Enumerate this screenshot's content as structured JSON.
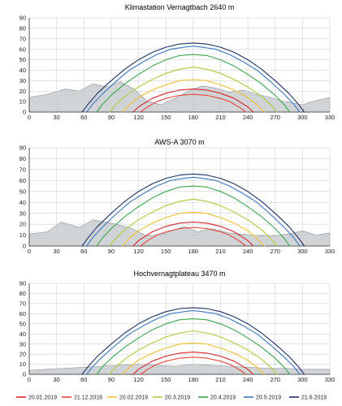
{
  "figure": {
    "legend": [
      {
        "date": "20.01.2019",
        "color": "#d7262b"
      },
      {
        "date": "21.12.2018",
        "color": "#e8453c"
      },
      {
        "date": "20.02.2019",
        "color": "#f2c12e"
      },
      {
        "date": "20.3.2019",
        "color": "#a7cf3b"
      },
      {
        "date": "20.4.2019",
        "color": "#38a84a"
      },
      {
        "date": "20.5.2019",
        "color": "#3a78c2"
      },
      {
        "date": "21.6.2019",
        "color": "#1e3269"
      }
    ]
  },
  "chart_data": [
    {
      "type": "line",
      "title": "Klimastation Vernagtbach 2640 m",
      "xlim": [
        0,
        330
      ],
      "ylim": [
        0,
        90
      ],
      "x_ticks": [
        0,
        30,
        60,
        90,
        120,
        150,
        180,
        210,
        240,
        270,
        300,
        330
      ],
      "y_ticks": [
        0,
        10,
        20,
        30,
        40,
        50,
        60,
        70,
        80,
        90
      ],
      "grid": true,
      "series": [
        {
          "name": "20.01.2019",
          "color": "#d7262b",
          "peak": 22,
          "x": [
            114,
            120,
            135,
            150,
            165,
            180,
            195,
            210,
            225,
            240,
            246
          ],
          "y": [
            0,
            5,
            13,
            18,
            21,
            22,
            21,
            18,
            13,
            5,
            0
          ]
        },
        {
          "name": "21.12.2018",
          "color": "#e8453c",
          "peak": 17,
          "x": [
            122,
            130,
            140,
            150,
            165,
            180,
            195,
            210,
            220,
            230,
            238
          ],
          "y": [
            0,
            5,
            10,
            13,
            16,
            17,
            16,
            13,
            10,
            5,
            0
          ]
        },
        {
          "name": "20.02.2019",
          "color": "#f2c12e",
          "peak": 31,
          "x": [
            102,
            110,
            120,
            135,
            150,
            165,
            180,
            195,
            210,
            225,
            240,
            250,
            258
          ],
          "y": [
            0,
            7,
            14,
            21,
            26,
            30,
            31,
            30,
            26,
            21,
            14,
            7,
            0
          ]
        },
        {
          "name": "20.3.2019",
          "color": "#a7cf3b",
          "peak": 43,
          "x": [
            88,
            95,
            105,
            120,
            135,
            150,
            165,
            180,
            195,
            210,
            225,
            240,
            255,
            265,
            272
          ],
          "y": [
            0,
            7,
            15,
            24,
            31,
            37,
            41,
            43,
            41,
            37,
            31,
            24,
            15,
            7,
            0
          ]
        },
        {
          "name": "20.4.2019",
          "color": "#38a84a",
          "peak": 55,
          "x": [
            74,
            80,
            90,
            105,
            120,
            135,
            150,
            165,
            180,
            195,
            210,
            225,
            240,
            255,
            270,
            280,
            286
          ],
          "y": [
            0,
            7,
            16,
            27,
            36,
            44,
            50,
            54,
            55,
            54,
            50,
            44,
            36,
            27,
            16,
            7,
            0
          ]
        },
        {
          "name": "20.5.2019",
          "color": "#3a78c2",
          "peak": 63,
          "x": [
            63,
            70,
            80,
            95,
            110,
            125,
            140,
            155,
            170,
            180,
            190,
            205,
            220,
            235,
            250,
            265,
            280,
            290,
            297
          ],
          "y": [
            0,
            8,
            17,
            29,
            40,
            48,
            55,
            60,
            62,
            63,
            62,
            60,
            55,
            48,
            40,
            29,
            17,
            8,
            0
          ]
        },
        {
          "name": "21.6.2019",
          "color": "#1e3269",
          "peak": 66,
          "x": [
            58,
            65,
            75,
            90,
            105,
            120,
            135,
            150,
            165,
            180,
            195,
            210,
            225,
            240,
            255,
            270,
            285,
            295,
            302
          ],
          "y": [
            0,
            8,
            18,
            30,
            41,
            50,
            57,
            62,
            65,
            66,
            65,
            62,
            57,
            50,
            41,
            30,
            18,
            8,
            0
          ]
        }
      ]
    },
    {
      "type": "line",
      "title": "AWS-A 3070 m",
      "xlim": [
        0,
        330
      ],
      "ylim": [
        0,
        90
      ],
      "x_ticks": [
        0,
        30,
        60,
        90,
        120,
        150,
        180,
        210,
        240,
        270,
        300,
        330
      ],
      "y_ticks": [
        0,
        10,
        20,
        30,
        40,
        50,
        60,
        70,
        80,
        90
      ],
      "grid": true,
      "series": [
        {
          "name": "20.01.2019",
          "color": "#d7262b",
          "peak": 22,
          "x": [
            114,
            120,
            135,
            150,
            165,
            180,
            195,
            210,
            225,
            240,
            246
          ],
          "y": [
            0,
            5,
            13,
            18,
            21,
            22,
            21,
            18,
            13,
            5,
            0
          ]
        },
        {
          "name": "21.12.2018",
          "color": "#e8453c",
          "peak": 17,
          "x": [
            122,
            130,
            140,
            150,
            165,
            180,
            195,
            210,
            220,
            230,
            238
          ],
          "y": [
            0,
            5,
            10,
            13,
            16,
            17,
            16,
            13,
            10,
            5,
            0
          ]
        },
        {
          "name": "20.02.2019",
          "color": "#f2c12e",
          "peak": 31,
          "x": [
            102,
            110,
            120,
            135,
            150,
            165,
            180,
            195,
            210,
            225,
            240,
            250,
            258
          ],
          "y": [
            0,
            7,
            14,
            21,
            26,
            30,
            31,
            30,
            26,
            21,
            14,
            7,
            0
          ]
        },
        {
          "name": "20.3.2019",
          "color": "#a7cf3b",
          "peak": 43,
          "x": [
            88,
            95,
            105,
            120,
            135,
            150,
            165,
            180,
            195,
            210,
            225,
            240,
            255,
            265,
            272
          ],
          "y": [
            0,
            7,
            15,
            24,
            31,
            37,
            41,
            43,
            41,
            37,
            31,
            24,
            15,
            7,
            0
          ]
        },
        {
          "name": "20.4.2019",
          "color": "#38a84a",
          "peak": 55,
          "x": [
            74,
            80,
            90,
            105,
            120,
            135,
            150,
            165,
            180,
            195,
            210,
            225,
            240,
            255,
            270,
            280,
            286
          ],
          "y": [
            0,
            7,
            16,
            27,
            36,
            44,
            50,
            54,
            55,
            54,
            50,
            44,
            36,
            27,
            16,
            7,
            0
          ]
        },
        {
          "name": "20.5.2019",
          "color": "#3a78c2",
          "peak": 63,
          "x": [
            63,
            70,
            80,
            95,
            110,
            125,
            140,
            155,
            170,
            180,
            190,
            205,
            220,
            235,
            250,
            265,
            280,
            290,
            297
          ],
          "y": [
            0,
            8,
            17,
            29,
            40,
            48,
            55,
            60,
            62,
            63,
            62,
            60,
            55,
            48,
            40,
            29,
            17,
            8,
            0
          ]
        },
        {
          "name": "21.6.2019",
          "color": "#1e3269",
          "peak": 66,
          "x": [
            58,
            65,
            75,
            90,
            105,
            120,
            135,
            150,
            165,
            180,
            195,
            210,
            225,
            240,
            255,
            270,
            285,
            295,
            302
          ],
          "y": [
            0,
            8,
            18,
            30,
            41,
            50,
            57,
            62,
            65,
            66,
            65,
            62,
            57,
            50,
            41,
            30,
            18,
            8,
            0
          ]
        }
      ]
    },
    {
      "type": "line",
      "title": "Hochvernagtplateau 3470 m",
      "xlim": [
        0,
        330
      ],
      "ylim": [
        0,
        90
      ],
      "x_ticks": [
        0,
        30,
        60,
        90,
        120,
        150,
        180,
        210,
        240,
        270,
        300,
        330
      ],
      "y_ticks": [
        0,
        10,
        20,
        30,
        40,
        50,
        60,
        70,
        80,
        90
      ],
      "grid": true,
      "series": [
        {
          "name": "20.01.2019",
          "color": "#d7262b",
          "peak": 22,
          "x": [
            114,
            120,
            135,
            150,
            165,
            180,
            195,
            210,
            225,
            240,
            246
          ],
          "y": [
            0,
            5,
            13,
            18,
            21,
            22,
            21,
            18,
            13,
            5,
            0
          ]
        },
        {
          "name": "21.12.2018",
          "color": "#e8453c",
          "peak": 17,
          "x": [
            122,
            130,
            140,
            150,
            165,
            180,
            195,
            210,
            220,
            230,
            238
          ],
          "y": [
            0,
            5,
            10,
            13,
            16,
            17,
            16,
            13,
            10,
            5,
            0
          ]
        },
        {
          "name": "20.02.2019",
          "color": "#f2c12e",
          "peak": 31,
          "x": [
            102,
            110,
            120,
            135,
            150,
            165,
            180,
            195,
            210,
            225,
            240,
            250,
            258
          ],
          "y": [
            0,
            7,
            14,
            21,
            26,
            30,
            31,
            30,
            26,
            21,
            14,
            7,
            0
          ]
        },
        {
          "name": "20.3.2019",
          "color": "#a7cf3b",
          "peak": 43,
          "x": [
            88,
            95,
            105,
            120,
            135,
            150,
            165,
            180,
            195,
            210,
            225,
            240,
            255,
            265,
            272
          ],
          "y": [
            0,
            7,
            15,
            24,
            31,
            37,
            41,
            43,
            41,
            37,
            31,
            24,
            15,
            7,
            0
          ]
        },
        {
          "name": "20.4.2019",
          "color": "#38a84a",
          "peak": 55,
          "x": [
            74,
            80,
            90,
            105,
            120,
            135,
            150,
            165,
            180,
            195,
            210,
            225,
            240,
            255,
            270,
            280,
            286
          ],
          "y": [
            0,
            7,
            16,
            27,
            36,
            44,
            50,
            54,
            55,
            54,
            50,
            44,
            36,
            27,
            16,
            7,
            0
          ]
        },
        {
          "name": "20.5.2019",
          "color": "#3a78c2",
          "peak": 63,
          "x": [
            63,
            70,
            80,
            95,
            110,
            125,
            140,
            155,
            170,
            180,
            190,
            205,
            220,
            235,
            250,
            265,
            280,
            290,
            297
          ],
          "y": [
            0,
            8,
            17,
            29,
            40,
            48,
            55,
            60,
            62,
            63,
            62,
            60,
            55,
            48,
            40,
            29,
            17,
            8,
            0
          ]
        },
        {
          "name": "21.6.2019",
          "color": "#1e3269",
          "peak": 66,
          "x": [
            58,
            65,
            75,
            90,
            105,
            120,
            135,
            150,
            165,
            180,
            195,
            210,
            225,
            240,
            255,
            270,
            285,
            295,
            302
          ],
          "y": [
            0,
            8,
            18,
            30,
            41,
            50,
            57,
            62,
            65,
            66,
            65,
            62,
            57,
            50,
            41,
            30,
            18,
            8,
            0
          ]
        }
      ]
    }
  ]
}
